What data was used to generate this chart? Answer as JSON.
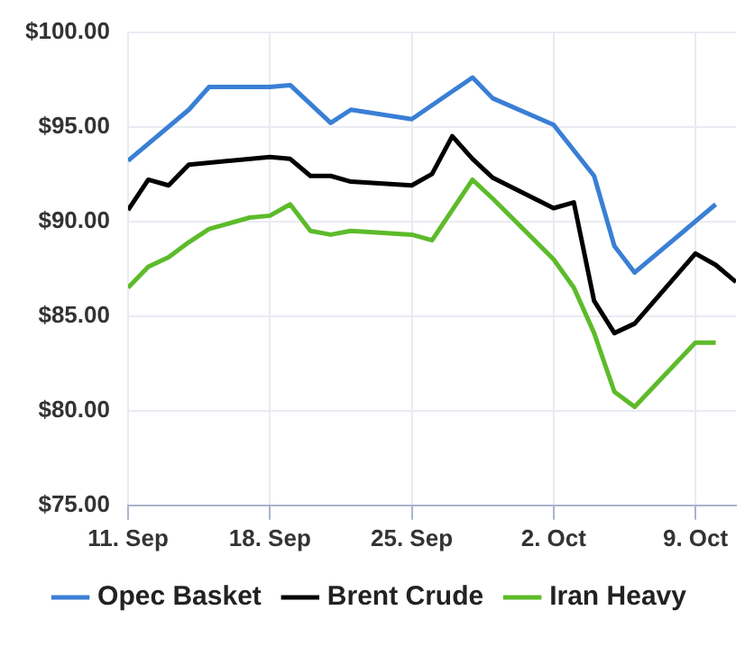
{
  "chart_data": {
    "type": "line",
    "x": [
      "--09-11",
      "--09-12",
      "--09-13",
      "--09-14",
      "--09-15",
      "--09-17",
      "--09-18",
      "--09-19",
      "--09-20",
      "--09-21",
      "--09-22",
      "--09-25",
      "--09-26",
      "--09-27",
      "--09-28",
      "--09-29",
      "--10-02",
      "--10-03",
      "--10-04",
      "--10-05",
      "--10-06",
      "--10-09",
      "--10-10",
      "--10-11"
    ],
    "series": [
      {
        "name": "Opec Basket",
        "color": "#3a7fd5",
        "values": [
          93.2,
          null,
          null,
          95.9,
          97.1,
          null,
          97.1,
          97.2,
          null,
          95.2,
          95.9,
          95.4,
          null,
          null,
          97.6,
          96.5,
          95.1,
          null,
          92.4,
          88.7,
          87.3,
          null,
          90.9,
          null
        ]
      },
      {
        "name": "Brent Crude",
        "color": "#000000",
        "values": [
          90.6,
          92.2,
          91.9,
          93.0,
          null,
          null,
          93.4,
          93.3,
          92.4,
          92.4,
          92.1,
          91.9,
          92.5,
          94.5,
          93.3,
          92.3,
          90.7,
          91.0,
          85.8,
          84.1,
          84.6,
          88.3,
          87.7,
          86.8
        ]
      },
      {
        "name": "Iran Heavy",
        "color": "#5dbb2a",
        "values": [
          86.5,
          87.6,
          88.1,
          88.9,
          89.6,
          90.2,
          90.3,
          90.9,
          89.5,
          89.3,
          89.5,
          89.3,
          89.0,
          null,
          92.2,
          91.2,
          88.0,
          86.5,
          84.1,
          81.0,
          80.2,
          83.6,
          83.6,
          null
        ]
      }
    ],
    "ylim": [
      75,
      100
    ],
    "yticks": [
      {
        "value": 75,
        "label": "$75.00"
      },
      {
        "value": 80,
        "label": "$80.00"
      },
      {
        "value": 85,
        "label": "$85.00"
      },
      {
        "value": 90,
        "label": "$90.00"
      },
      {
        "value": 95,
        "label": "$95.00"
      },
      {
        "value": 100,
        "label": "$100.00"
      }
    ],
    "xlim": [
      "--09-11",
      "--10-11"
    ],
    "xticks": [
      {
        "value": "--09-11",
        "label": "11. Sep"
      },
      {
        "value": "--09-18",
        "label": "18. Sep"
      },
      {
        "value": "--09-25",
        "label": "25. Sep"
      },
      {
        "value": "--10-02",
        "label": "2. Oct"
      },
      {
        "value": "--10-09",
        "label": "9. Oct"
      }
    ],
    "grid": true,
    "legend": "bottom",
    "marker": "none",
    "line_style": "solid"
  }
}
